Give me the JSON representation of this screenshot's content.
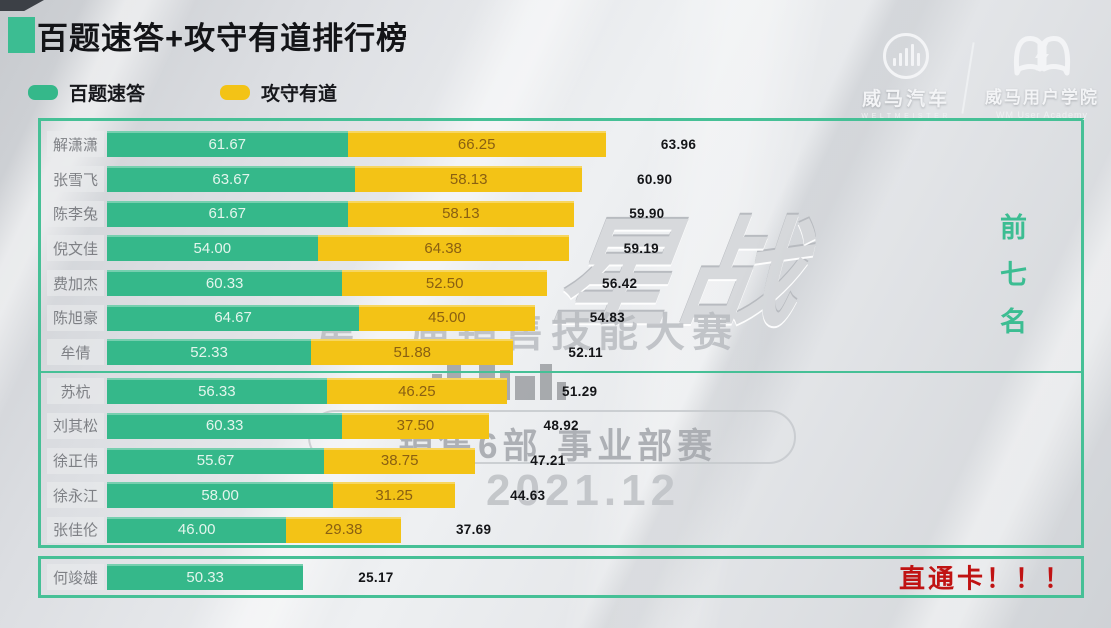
{
  "title": "百题速答+攻守有道排行榜",
  "legend": {
    "items": [
      {
        "label": "百题速答",
        "color": "#35b88a"
      },
      {
        "label": "攻守有道",
        "color": "#f3c316"
      }
    ]
  },
  "brand": {
    "weltmeister": {
      "name": "威马汽车",
      "subtitle": "WELTMEISTER"
    },
    "academy": {
      "name": "威马用户学院",
      "subtitle": "WM User Academy"
    }
  },
  "annotations": {
    "top_seven": "前七名",
    "direct_pass": "直通卡！！！"
  },
  "watermark": {
    "logo_text": "星战",
    "competition": "第二届销售技能大赛",
    "department": "销售6部 事业部赛",
    "date": "2021.12"
  },
  "chart_data": {
    "type": "bar",
    "orientation": "horizontal",
    "stacked": true,
    "title": "百题速答+攻守有道排行榜",
    "categories": [
      "解潇潇",
      "张雪飞",
      "陈李兔",
      "倪文佳",
      "费加杰",
      "陈旭豪",
      "牟倩",
      "苏杭",
      "刘其松",
      "徐正伟",
      "徐永江",
      "张佳伦",
      "何竣雄"
    ],
    "series": [
      {
        "name": "百题速答",
        "color": "#35b88a",
        "values": [
          61.67,
          63.67,
          61.67,
          54.0,
          60.33,
          64.67,
          52.33,
          56.33,
          60.33,
          55.67,
          58.0,
          46.0,
          50.33
        ]
      },
      {
        "name": "攻守有道",
        "color": "#f3c316",
        "values": [
          66.25,
          58.13,
          58.13,
          64.38,
          52.5,
          45.0,
          51.88,
          46.25,
          37.5,
          38.75,
          31.25,
          29.38,
          0
        ]
      }
    ],
    "totals": [
      63.96,
      60.9,
      59.9,
      59.19,
      56.42,
      54.83,
      52.11,
      51.29,
      48.92,
      47.21,
      44.63,
      37.69,
      25.17
    ],
    "value_format": "2-decimals",
    "top_group_size": 7,
    "legend_position": "top-left",
    "grid": false
  }
}
